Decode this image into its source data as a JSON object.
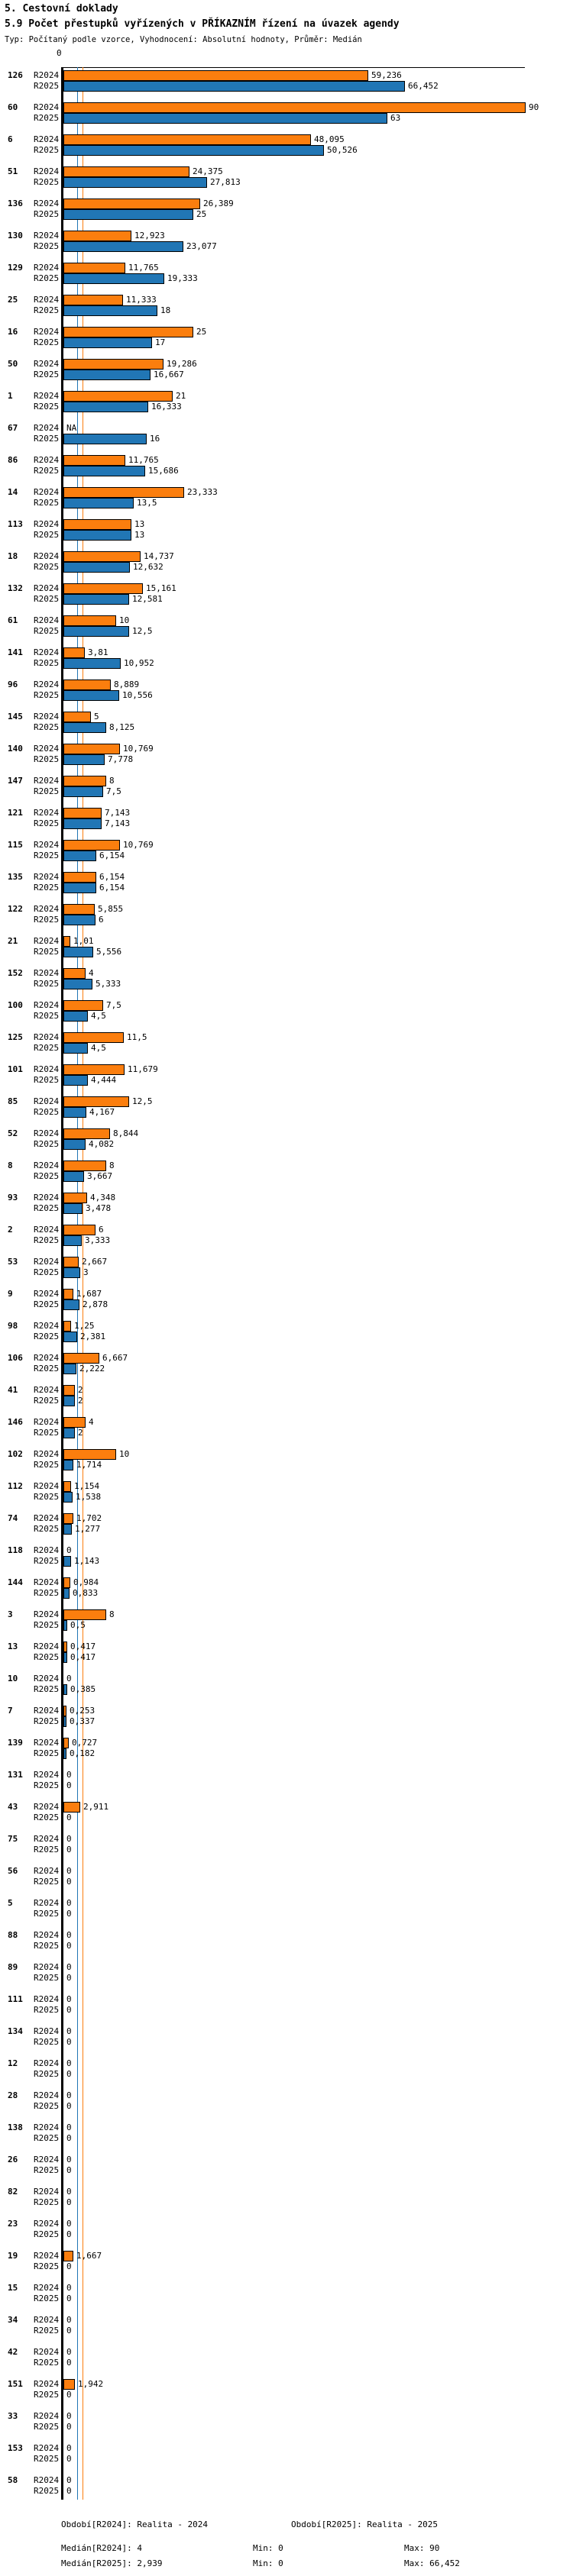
{
  "header": {
    "section_title": "5. Cestovní doklady",
    "chart_title": "5.9 Počet přestupků vyřízených v PŘÍKAZNÍM řízení na úvazek agendy",
    "meta_line": "Typ: Počítaný podle vzorce, Vyhodnocení: Absolutní hodnoty, Průměr: Medián"
  },
  "chart_data": {
    "type": "bar",
    "orientation": "horizontal",
    "decimal_separator": ",",
    "series_labels": [
      "R2024",
      "R2025"
    ],
    "colors": {
      "r2024": "#FB7E0E",
      "r2025": "#2176B5"
    },
    "axis": {
      "origin_label": "0",
      "xlim": [
        0,
        90
      ],
      "grid": false
    },
    "medians": {
      "r2024": "4",
      "r2025": "2,939"
    },
    "groups": [
      {
        "label": "126",
        "values": [
          "59,236",
          "66,452"
        ]
      },
      {
        "label": "60",
        "values": [
          "90",
          "63"
        ]
      },
      {
        "label": "6",
        "values": [
          "48,095",
          "50,526"
        ]
      },
      {
        "label": "51",
        "values": [
          "24,375",
          "27,813"
        ]
      },
      {
        "label": "136",
        "values": [
          "26,389",
          "25"
        ]
      },
      {
        "label": "130",
        "values": [
          "12,923",
          "23,077"
        ]
      },
      {
        "label": "129",
        "values": [
          "11,765",
          "19,333"
        ]
      },
      {
        "label": "25",
        "values": [
          "11,333",
          "18"
        ]
      },
      {
        "label": "16",
        "values": [
          "25",
          "17"
        ]
      },
      {
        "label": "50",
        "values": [
          "19,286",
          "16,667"
        ]
      },
      {
        "label": "1",
        "values": [
          "21",
          "16,333"
        ]
      },
      {
        "label": "67",
        "values": [
          "NA",
          "16"
        ]
      },
      {
        "label": "86",
        "values": [
          "11,765",
          "15,686"
        ]
      },
      {
        "label": "14",
        "values": [
          "23,333",
          "13,5"
        ]
      },
      {
        "label": "113",
        "values": [
          "13",
          "13"
        ]
      },
      {
        "label": "18",
        "values": [
          "14,737",
          "12,632"
        ]
      },
      {
        "label": "132",
        "values": [
          "15,161",
          "12,581"
        ]
      },
      {
        "label": "61",
        "values": [
          "10",
          "12,5"
        ]
      },
      {
        "label": "141",
        "values": [
          "3,81",
          "10,952"
        ]
      },
      {
        "label": "96",
        "values": [
          "8,889",
          "10,556"
        ]
      },
      {
        "label": "145",
        "values": [
          "5",
          "8,125"
        ]
      },
      {
        "label": "140",
        "values": [
          "10,769",
          "7,778"
        ]
      },
      {
        "label": "147",
        "values": [
          "8",
          "7,5"
        ]
      },
      {
        "label": "121",
        "values": [
          "7,143",
          "7,143"
        ]
      },
      {
        "label": "115",
        "values": [
          "10,769",
          "6,154"
        ]
      },
      {
        "label": "135",
        "values": [
          "6,154",
          "6,154"
        ]
      },
      {
        "label": "122",
        "values": [
          "5,855",
          "6"
        ]
      },
      {
        "label": "21",
        "values": [
          "1,01",
          "5,556"
        ]
      },
      {
        "label": "152",
        "values": [
          "4",
          "5,333"
        ]
      },
      {
        "label": "100",
        "values": [
          "7,5",
          "4,5"
        ]
      },
      {
        "label": "125",
        "values": [
          "11,5",
          "4,5"
        ]
      },
      {
        "label": "101",
        "values": [
          "11,679",
          "4,444"
        ]
      },
      {
        "label": "85",
        "values": [
          "12,5",
          "4,167"
        ]
      },
      {
        "label": "52",
        "values": [
          "8,844",
          "4,082"
        ]
      },
      {
        "label": "8",
        "values": [
          "8",
          "3,667"
        ]
      },
      {
        "label": "93",
        "values": [
          "4,348",
          "3,478"
        ]
      },
      {
        "label": "2",
        "values": [
          "6",
          "3,333"
        ]
      },
      {
        "label": "53",
        "values": [
          "2,667",
          "3"
        ]
      },
      {
        "label": "9",
        "values": [
          "1,687",
          "2,878"
        ]
      },
      {
        "label": "98",
        "values": [
          "1,25",
          "2,381"
        ]
      },
      {
        "label": "106",
        "values": [
          "6,667",
          "2,222"
        ]
      },
      {
        "label": "41",
        "values": [
          "2",
          "2"
        ]
      },
      {
        "label": "146",
        "values": [
          "4",
          "2"
        ]
      },
      {
        "label": "102",
        "values": [
          "10",
          "1,714"
        ]
      },
      {
        "label": "112",
        "values": [
          "1,154",
          "1,538"
        ]
      },
      {
        "label": "74",
        "values": [
          "1,702",
          "1,277"
        ]
      },
      {
        "label": "118",
        "values": [
          "0",
          "1,143"
        ]
      },
      {
        "label": "144",
        "values": [
          "0,984",
          "0,833"
        ]
      },
      {
        "label": "3",
        "values": [
          "8",
          "0,5"
        ]
      },
      {
        "label": "13",
        "values": [
          "0,417",
          "0,417"
        ]
      },
      {
        "label": "10",
        "values": [
          "0",
          "0,385"
        ]
      },
      {
        "label": "7",
        "values": [
          "0,253",
          "0,337"
        ]
      },
      {
        "label": "139",
        "values": [
          "0,727",
          "0,182"
        ]
      },
      {
        "label": "131",
        "values": [
          "0",
          "0"
        ]
      },
      {
        "label": "43",
        "values": [
          "2,911",
          "0"
        ]
      },
      {
        "label": "75",
        "values": [
          "0",
          "0"
        ]
      },
      {
        "label": "56",
        "values": [
          "0",
          "0"
        ]
      },
      {
        "label": "5",
        "values": [
          "0",
          "0"
        ]
      },
      {
        "label": "88",
        "values": [
          "0",
          "0"
        ]
      },
      {
        "label": "89",
        "values": [
          "0",
          "0"
        ]
      },
      {
        "label": "111",
        "values": [
          "0",
          "0"
        ]
      },
      {
        "label": "134",
        "values": [
          "0",
          "0"
        ]
      },
      {
        "label": "12",
        "values": [
          "0",
          "0"
        ]
      },
      {
        "label": "28",
        "values": [
          "0",
          "0"
        ]
      },
      {
        "label": "138",
        "values": [
          "0",
          "0"
        ]
      },
      {
        "label": "26",
        "values": [
          "0",
          "0"
        ]
      },
      {
        "label": "82",
        "values": [
          "0",
          "0"
        ]
      },
      {
        "label": "23",
        "values": [
          "0",
          "0"
        ]
      },
      {
        "label": "19",
        "values": [
          "1,667",
          "0"
        ]
      },
      {
        "label": "15",
        "values": [
          "0",
          "0"
        ]
      },
      {
        "label": "34",
        "values": [
          "0",
          "0"
        ]
      },
      {
        "label": "42",
        "values": [
          "0",
          "0"
        ]
      },
      {
        "label": "151",
        "values": [
          "1,942",
          "0"
        ]
      },
      {
        "label": "33",
        "values": [
          "0",
          "0"
        ]
      },
      {
        "label": "153",
        "values": [
          "0",
          "0"
        ]
      },
      {
        "label": "58",
        "values": [
          "0",
          "0"
        ]
      }
    ]
  },
  "footer": {
    "period_2024": "Období[R2024]: Realita - 2024",
    "period_2025": "Období[R2025]: Realita - 2025",
    "rows": [
      {
        "label": "Medián[R2024]: 4",
        "min": "Min: 0",
        "max": "Max: 90"
      },
      {
        "label": "Medián[R2025]: 2,939",
        "min": "Min: 0",
        "max": "Max: 66,452"
      }
    ]
  }
}
